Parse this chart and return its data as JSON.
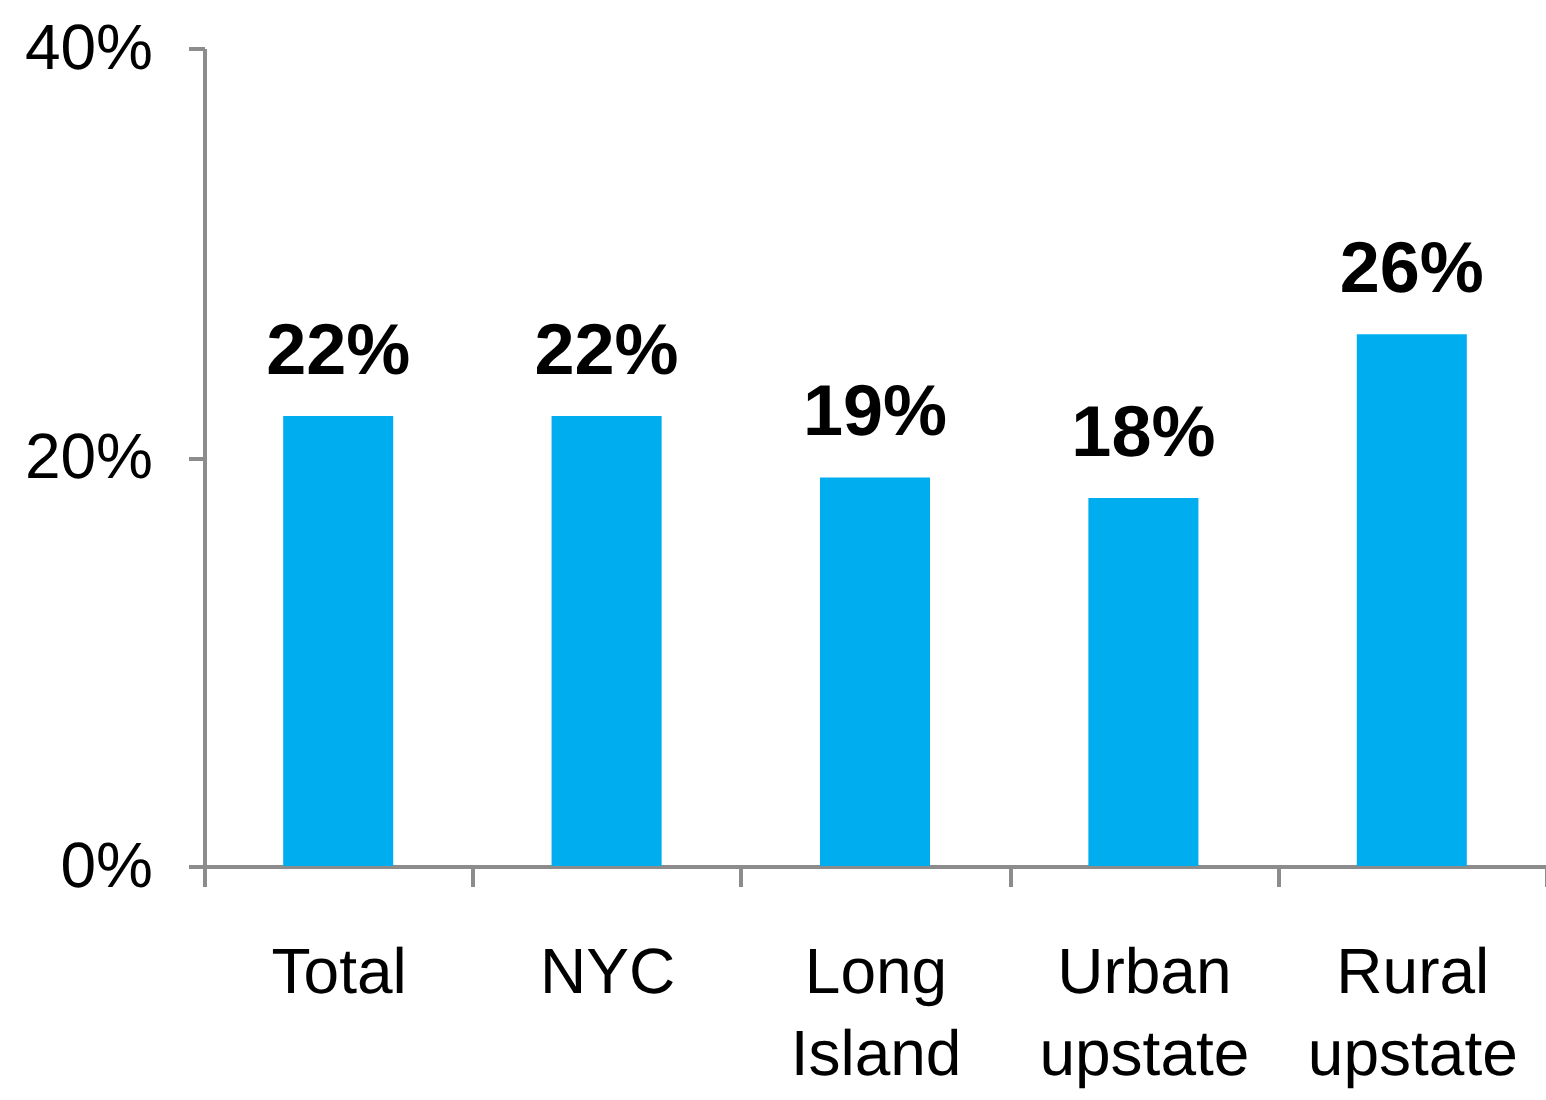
{
  "chart_data": {
    "type": "bar",
    "categories": [
      "Total",
      "NYC",
      "Long Island",
      "Urban upstate",
      "Rural upstate"
    ],
    "values": [
      22,
      22,
      19,
      18,
      26
    ],
    "value_labels": [
      "22%",
      "22%",
      "19%",
      "18%",
      "26%"
    ],
    "color": "#00aeef",
    "ylim": [
      0,
      40
    ],
    "yticks": [
      {
        "value": 0,
        "label": "0%"
      },
      {
        "value": 20,
        "label": "20%"
      },
      {
        "value": 40,
        "label": "40%"
      }
    ]
  }
}
